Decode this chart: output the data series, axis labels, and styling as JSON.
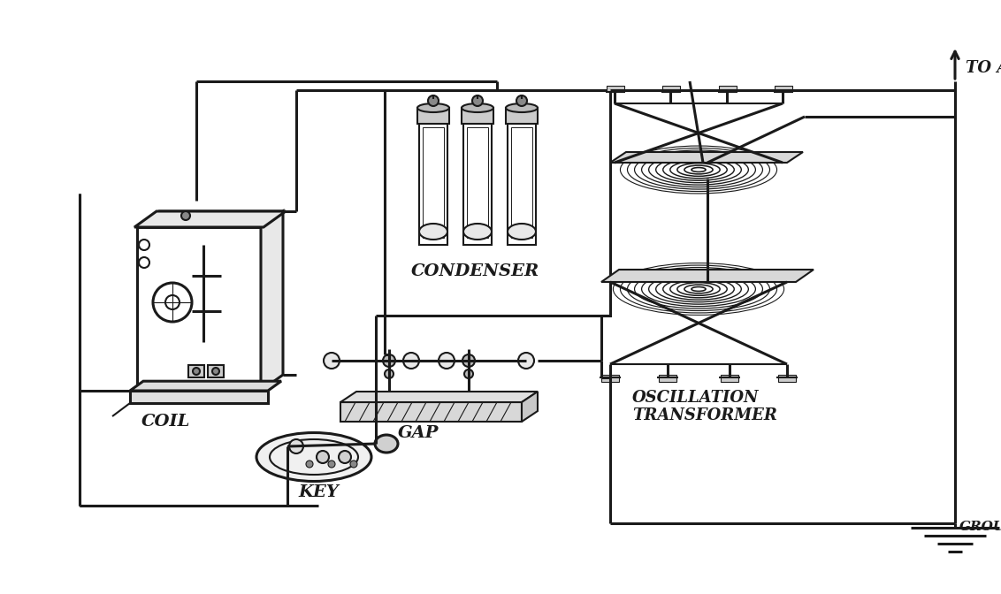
{
  "bg_color": "#ffffff",
  "line_color": "#1a1a1a",
  "labels": {
    "coil": "COIL",
    "condenser": "CONDENSER",
    "gap": "GAP",
    "key": "KEY",
    "oscillation_transformer_1": "OSCILLATION",
    "oscillation_transformer_2": "TRANSFORMER",
    "to_antenna": "TO A",
    "ground": "GROUN"
  },
  "figsize": [
    11.32,
    6.72
  ],
  "dpi": 100
}
